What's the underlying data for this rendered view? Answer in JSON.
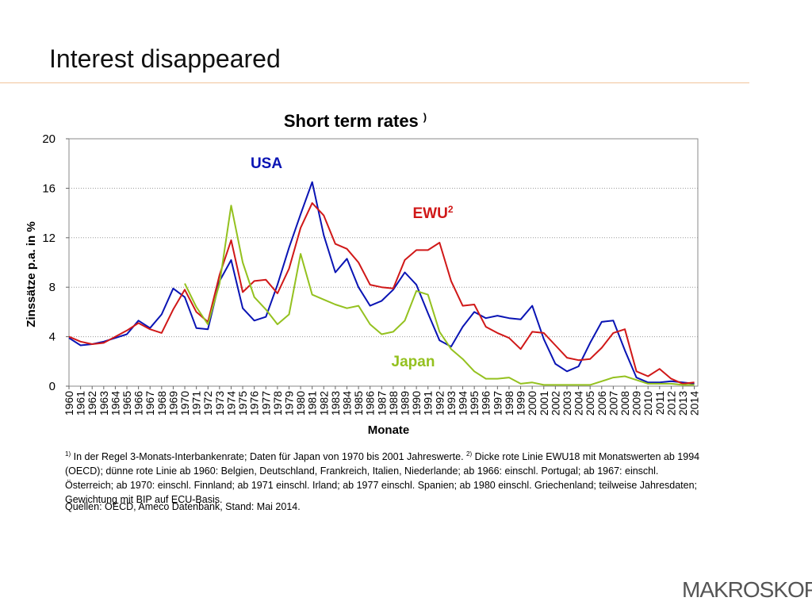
{
  "header": {
    "title": "Interest disappeared"
  },
  "chart_data": {
    "type": "line",
    "title": "Short term rates",
    "title_sup": ")",
    "y_label": "Zinssätze p.a. in %",
    "x_label": "Monate",
    "xlim": [
      1960,
      2014.3
    ],
    "ylim": [
      0,
      20
    ],
    "yticks": [
      0,
      4,
      8,
      12,
      16,
      20
    ],
    "grid": true,
    "xticks": [
      1960,
      1961,
      1962,
      1963,
      1964,
      1965,
      1966,
      1967,
      1968,
      1969,
      1970,
      1971,
      1972,
      1973,
      1974,
      1975,
      1976,
      1977,
      1978,
      1979,
      1980,
      1981,
      1982,
      1983,
      1984,
      1985,
      1986,
      1987,
      1988,
      1989,
      1990,
      1991,
      1992,
      1993,
      1994,
      1995,
      1996,
      1997,
      1998,
      1999,
      2000,
      2001,
      2002,
      2003,
      2004,
      2005,
      2006,
      2007,
      2008,
      2009,
      2010,
      2011,
      2012,
      2013,
      2014
    ],
    "x": [
      1960,
      1961,
      1962,
      1963,
      1964,
      1965,
      1966,
      1967,
      1968,
      1969,
      1970,
      1971,
      1972,
      1973,
      1974,
      1975,
      1976,
      1977,
      1978,
      1979,
      1980,
      1981,
      1982,
      1983,
      1984,
      1985,
      1986,
      1987,
      1988,
      1989,
      1990,
      1991,
      1992,
      1993,
      1994,
      1995,
      1996,
      1997,
      1998,
      1999,
      2000,
      2001,
      2002,
      2003,
      2004,
      2005,
      2006,
      2007,
      2008,
      2009,
      2010,
      2011,
      2012,
      2013,
      2014
    ],
    "series": [
      {
        "name": "USA",
        "color": "#0a14b4",
        "values": [
          3.9,
          3.3,
          3.4,
          3.6,
          3.9,
          4.2,
          5.3,
          4.7,
          5.8,
          7.9,
          7.2,
          4.7,
          4.6,
          8.5,
          10.2,
          6.3,
          5.3,
          5.6,
          8.2,
          11.2,
          13.9,
          16.5,
          12.2,
          9.2,
          10.3,
          8.0,
          6.5,
          6.9,
          7.8,
          9.2,
          8.2,
          5.9,
          3.7,
          3.2,
          4.8,
          6.0,
          5.5,
          5.7,
          5.5,
          5.4,
          6.5,
          3.8,
          1.8,
          1.2,
          1.6,
          3.5,
          5.2,
          5.3,
          2.9,
          0.7,
          0.3,
          0.3,
          0.4,
          0.3,
          0.2
        ]
      },
      {
        "name": "EWU",
        "name_sup": "2",
        "color": "#d01818",
        "values": [
          4.0,
          3.6,
          3.4,
          3.5,
          4.0,
          4.5,
          5.1,
          4.6,
          4.3,
          6.2,
          7.8,
          6.0,
          5.2,
          9.0,
          11.8,
          7.6,
          8.5,
          8.6,
          7.5,
          9.5,
          12.8,
          14.8,
          13.8,
          11.5,
          11.1,
          10.0,
          8.2,
          8.0,
          7.9,
          10.2,
          11.0,
          11.0,
          11.6,
          8.5,
          6.5,
          6.6,
          4.8,
          4.3,
          3.9,
          3.0,
          4.4,
          4.3,
          3.3,
          2.3,
          2.1,
          2.2,
          3.1,
          4.3,
          4.6,
          1.2,
          0.8,
          1.4,
          0.6,
          0.2,
          0.3
        ]
      },
      {
        "name": "Japan",
        "color": "#94c11f",
        "values": [
          null,
          null,
          null,
          null,
          null,
          null,
          null,
          null,
          null,
          null,
          8.3,
          6.4,
          5.0,
          8.3,
          14.6,
          10.0,
          7.2,
          6.2,
          5.0,
          5.8,
          10.7,
          7.4,
          7.0,
          6.6,
          6.3,
          6.5,
          5.0,
          4.2,
          4.4,
          5.3,
          7.7,
          7.4,
          4.4,
          3.0,
          2.2,
          1.2,
          0.6,
          0.6,
          0.7,
          0.2,
          0.3,
          0.1,
          0.1,
          0.1,
          0.1,
          0.1,
          0.4,
          0.7,
          0.8,
          0.5,
          0.2,
          0.2,
          0.2,
          0.1,
          0.1
        ]
      }
    ]
  },
  "footnote": {
    "mark1": "1)",
    "text1": " In der Regel 3-Monats-Interbankenrate; Daten für Japan von 1970 bis 2001 Jahreswerte. ",
    "mark2": "2)",
    "text2": " Dicke rote Linie EWU18 mit Monatswerten ab 1994 (OECD); dünne rote Linie ab 1960: Belgien, Deutschland, Frankreich, Italien, Niederlande; ab 1966: einschl. Portugal; ab 1967: einschl. Österreich; ab 1970: einschl. Finnland; ab 1971 einschl. Irland; ab 1977 einschl. Spanien; ab 1980 einschl. Griechenland; teilweise Jahresdaten; Gewichtung mit BIP auf ECU-Basis.",
    "sources": "Quellen: OECD, Ameco Datenbank, Stand: Mai 2014."
  },
  "logo": "MAKROSKOP"
}
